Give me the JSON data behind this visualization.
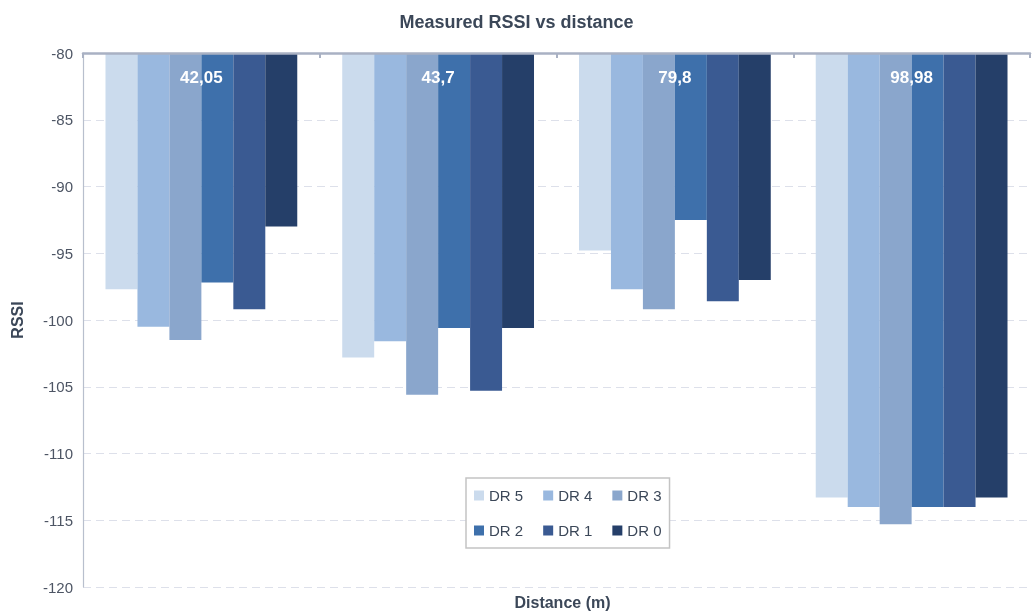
{
  "chart_data": {
    "type": "bar",
    "title": "Measured RSSI vs distance",
    "xlabel": "Distance (m)",
    "ylabel": "RSSI",
    "categories": [
      "42,05",
      "43,7",
      "79,8",
      "98,98"
    ],
    "series": [
      {
        "name": "DR 5",
        "color": "#cbdbed",
        "values": [
          -97.7,
          -102.8,
          -94.8,
          -113.3
        ]
      },
      {
        "name": "DR 4",
        "color": "#99b8df",
        "values": [
          -100.5,
          -101.6,
          -97.7,
          -114.0
        ]
      },
      {
        "name": "DR 3",
        "color": "#8aa6cc",
        "values": [
          -101.5,
          -105.6,
          -99.2,
          -115.3
        ]
      },
      {
        "name": "DR 2",
        "color": "#3e70ab",
        "values": [
          -97.2,
          -100.6,
          -92.5,
          -114.0
        ]
      },
      {
        "name": "DR 1",
        "color": "#3a5a92",
        "values": [
          -99.2,
          -105.3,
          -98.6,
          -114.0
        ]
      },
      {
        "name": "DR 0",
        "color": "#253f69",
        "values": [
          -93.0,
          -100.6,
          -97.0,
          -113.3
        ]
      }
    ],
    "ylim": [
      -120,
      -80
    ],
    "yticks": [
      -120,
      -115,
      -110,
      -105,
      -100,
      -95,
      -90,
      -85,
      -80
    ],
    "grid": "y",
    "legend": "bottom"
  }
}
